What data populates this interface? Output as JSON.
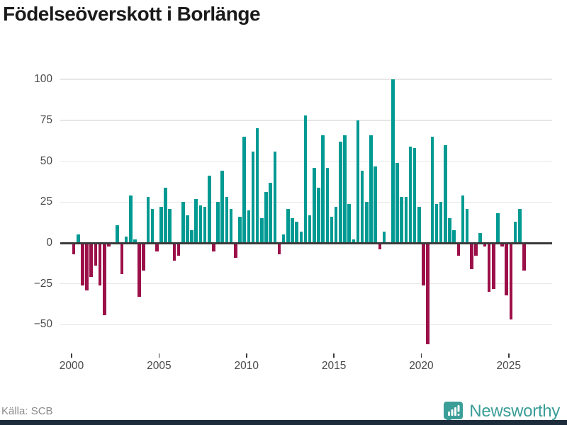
{
  "title": "Födelseöverskott i Borlänge",
  "footer": {
    "source": "Källa: SCB",
    "brand": "Newsworthy"
  },
  "colors": {
    "positive": "#009a93",
    "negative": "#9c1049",
    "grid": "#e6e6e6",
    "zero_line": "#3a3a3a",
    "axis_text": "#4a4a4a",
    "title_text": "#1a1a1a",
    "source_text": "#8a8a8a",
    "brand_teal": "#3b9e98",
    "footer_bar": "#1d2c3b"
  },
  "chart_data": {
    "type": "bar",
    "title": "Födelseöverskott i Borlänge",
    "frequency": "quarterly",
    "start": "2000-Q1",
    "end": "2025-Q4",
    "grid": true,
    "ylim": [
      -73,
      107
    ],
    "y_ticks": [
      100,
      75,
      50,
      25,
      0,
      -25,
      -50
    ],
    "y_tick_labels": [
      "100",
      "75",
      "50",
      "25",
      "0",
      "−25",
      "−50"
    ],
    "x_ticks": [
      2000,
      2005,
      2010,
      2015,
      2020,
      2025
    ],
    "x_tick_labels": [
      "2000",
      "2005",
      "2010",
      "2015",
      "2020",
      "2025"
    ],
    "values": [
      -7,
      5,
      -26,
      -29,
      -21,
      -14,
      -26,
      -44,
      -2,
      0,
      11,
      -19,
      4,
      29,
      2,
      -33,
      -17,
      28,
      21,
      -5,
      22,
      34,
      21,
      -11,
      -8,
      25,
      17,
      8,
      27,
      23,
      22,
      41,
      -5,
      25,
      44,
      28,
      21,
      -9,
      16,
      65,
      20,
      56,
      70,
      15,
      31,
      37,
      56,
      -7,
      5,
      21,
      15,
      13,
      7,
      78,
      17,
      46,
      34,
      66,
      46,
      16,
      22,
      62,
      66,
      24,
      2,
      75,
      44,
      25,
      66,
      47,
      -4,
      7,
      0,
      100,
      49,
      28,
      28,
      59,
      58,
      22,
      -26,
      -62,
      65,
      24,
      25,
      60,
      15,
      8,
      -8,
      29,
      21,
      -16,
      -8,
      6,
      -2,
      -30,
      -28,
      18,
      -2,
      -32,
      -47,
      13,
      21,
      -17
    ]
  }
}
